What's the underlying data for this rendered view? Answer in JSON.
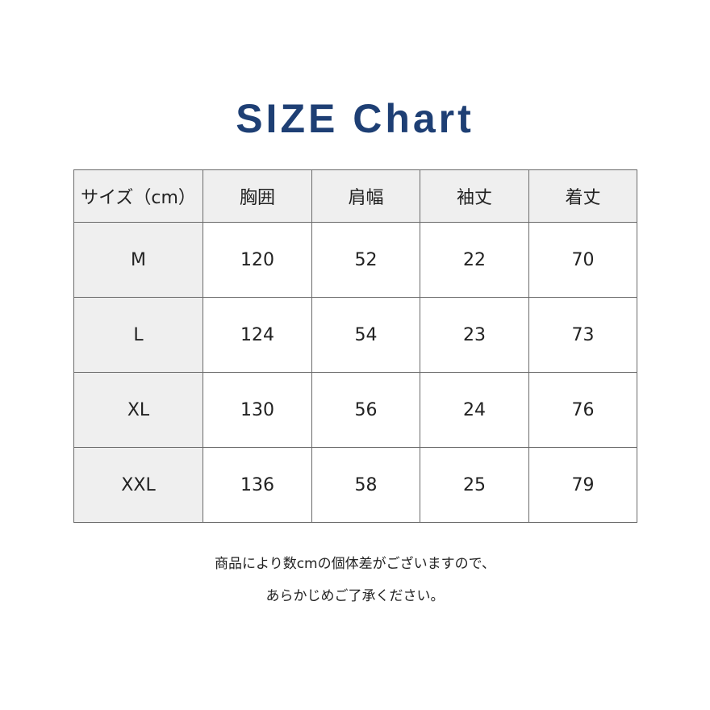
{
  "title": "SIZE Chart",
  "table": {
    "headers": [
      "サイズ（cm）",
      "胸囲",
      "肩幅",
      "袖丈",
      "着丈"
    ],
    "rows": [
      [
        "M",
        "120",
        "52",
        "22",
        "70"
      ],
      [
        "L",
        "124",
        "54",
        "23",
        "73"
      ],
      [
        "XL",
        "130",
        "56",
        "24",
        "76"
      ],
      [
        "XXL",
        "136",
        "58",
        "25",
        "79"
      ]
    ]
  },
  "note": {
    "line1": "商品により数cmの個体差がございますので、",
    "line2": "あらかじめご了承ください。"
  },
  "colors": {
    "title": "#1e3f74",
    "header_bg": "#efefef",
    "border": "#6a6a6a"
  }
}
